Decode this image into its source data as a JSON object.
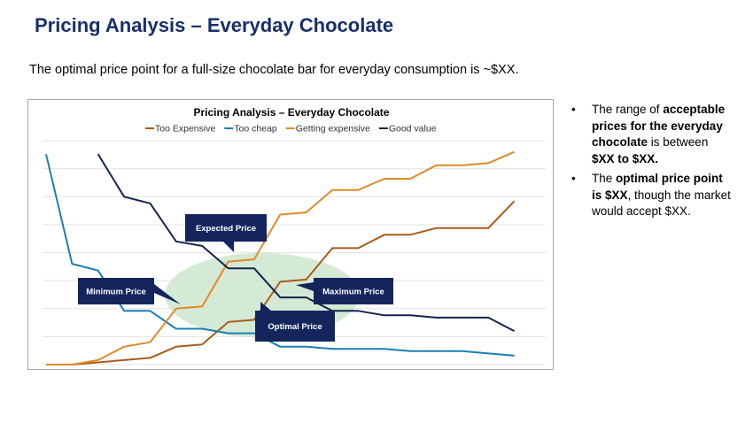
{
  "slide": {
    "title": "Pricing Analysis – Everyday Chocolate",
    "subtitle": "The optimal price point for a full-size chocolate bar for everyday consumption is ~$XX."
  },
  "bullets": [
    [
      {
        "text": "The range of ",
        "bold": false
      },
      {
        "text": "acceptable prices for the everyday chocolate",
        "bold": true
      },
      {
        "text": " is between ",
        "bold": false
      },
      {
        "text": "$XX to $XX.",
        "bold": true
      }
    ],
    [
      {
        "text": "The ",
        "bold": false
      },
      {
        "text": "optimal price point is $XX",
        "bold": true
      },
      {
        "text": ", though the market would accept $XX.",
        "bold": false
      }
    ]
  ],
  "chart_data": {
    "type": "line",
    "title": "Pricing Analysis – Everyday Chocolate",
    "xlabel": "",
    "ylabel": "",
    "x": [
      1,
      2,
      3,
      4,
      5,
      6,
      7,
      8,
      9,
      10,
      11,
      12,
      13,
      14,
      15,
      16,
      17,
      18,
      19,
      20
    ],
    "ylim": [
      0,
      1
    ],
    "grid": true,
    "legend_position": "top",
    "series": [
      {
        "name": "Too Expensive",
        "color": "#a85c1a",
        "values": [
          0,
          0,
          0.01,
          0.02,
          0.03,
          0.08,
          0.09,
          0.19,
          0.2,
          0.37,
          0.38,
          0.52,
          0.52,
          0.58,
          0.58,
          0.61,
          0.61,
          0.61,
          0.73,
          null
        ]
      },
      {
        "name": "Too cheap",
        "color": "#1b7fb3",
        "values": [
          0.94,
          0.45,
          0.42,
          0.24,
          0.24,
          0.16,
          0.16,
          0.14,
          0.14,
          0.08,
          0.08,
          0.07,
          0.07,
          0.07,
          0.06,
          0.06,
          0.06,
          0.05,
          0.04,
          null
        ]
      },
      {
        "name": "Getting expensive",
        "color": "#e08a2a",
        "values": [
          0,
          0,
          0.02,
          0.08,
          0.1,
          0.25,
          0.26,
          0.46,
          0.47,
          0.67,
          0.68,
          0.78,
          0.78,
          0.83,
          0.83,
          0.89,
          0.89,
          0.9,
          0.95,
          null
        ]
      },
      {
        "name": "Good value",
        "color": "#14244f",
        "values": [
          null,
          null,
          0.94,
          0.75,
          0.72,
          0.55,
          0.53,
          0.43,
          0.43,
          0.3,
          0.3,
          0.24,
          0.24,
          0.22,
          0.22,
          0.21,
          0.21,
          0.21,
          0.15,
          null
        ]
      }
    ],
    "annotations": [
      {
        "label": "Expected Price"
      },
      {
        "label": "Minimum Price"
      },
      {
        "label": "Maximum Price"
      },
      {
        "label": "Optimal Price"
      }
    ],
    "highlight_color": "#cde6cc"
  }
}
